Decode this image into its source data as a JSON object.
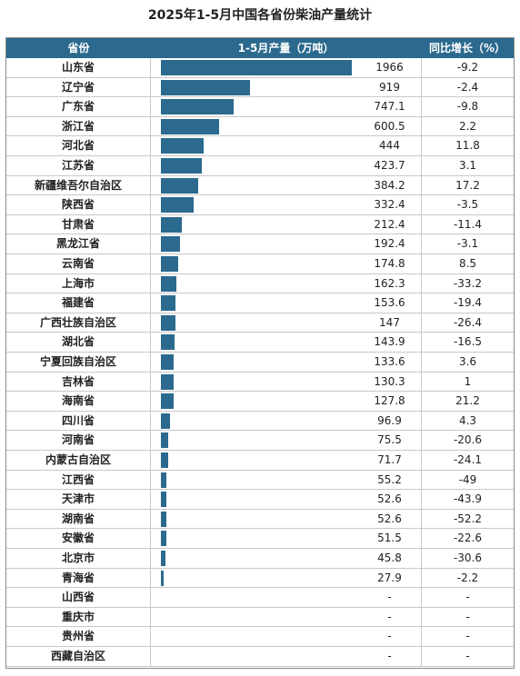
{
  "title": "2025年1-5月中国各省份柴油产量统计",
  "colors": {
    "header_bg": "#2b6a8e",
    "bar": "#2b6a8e"
  },
  "table": {
    "headers": {
      "province": "省份",
      "production": "1-5月产量（万吨）",
      "growth": "同比增长（%）"
    }
  },
  "chart_data": {
    "type": "table",
    "title": "2025年1-5月中国各省份柴油产量统计",
    "columns": [
      "省份",
      "1-5月产量（万吨）",
      "同比增长（%）"
    ],
    "bar_max": 1966,
    "rows": [
      {
        "province": "山东省",
        "value": 1966,
        "value_text": "1966",
        "growth": "-9.2"
      },
      {
        "province": "辽宁省",
        "value": 919,
        "value_text": "919",
        "growth": "-2.4"
      },
      {
        "province": "广东省",
        "value": 747.1,
        "value_text": "747.1",
        "growth": "-9.8"
      },
      {
        "province": "浙江省",
        "value": 600.5,
        "value_text": "600.5",
        "growth": "2.2"
      },
      {
        "province": "河北省",
        "value": 444,
        "value_text": "444",
        "growth": "11.8"
      },
      {
        "province": "江苏省",
        "value": 423.7,
        "value_text": "423.7",
        "growth": "3.1"
      },
      {
        "province": "新疆维吾尔自治区",
        "value": 384.2,
        "value_text": "384.2",
        "growth": "17.2"
      },
      {
        "province": "陕西省",
        "value": 332.4,
        "value_text": "332.4",
        "growth": "-3.5"
      },
      {
        "province": "甘肃省",
        "value": 212.4,
        "value_text": "212.4",
        "growth": "-11.4"
      },
      {
        "province": "黑龙江省",
        "value": 192.4,
        "value_text": "192.4",
        "growth": "-3.1"
      },
      {
        "province": "云南省",
        "value": 174.8,
        "value_text": "174.8",
        "growth": "8.5"
      },
      {
        "province": "上海市",
        "value": 162.3,
        "value_text": "162.3",
        "growth": "-33.2"
      },
      {
        "province": "福建省",
        "value": 153.6,
        "value_text": "153.6",
        "growth": "-19.4"
      },
      {
        "province": "广西壮族自治区",
        "value": 147,
        "value_text": "147",
        "growth": "-26.4"
      },
      {
        "province": "湖北省",
        "value": 143.9,
        "value_text": "143.9",
        "growth": "-16.5"
      },
      {
        "province": "宁夏回族自治区",
        "value": 133.6,
        "value_text": "133.6",
        "growth": "3.6"
      },
      {
        "province": "吉林省",
        "value": 130.3,
        "value_text": "130.3",
        "growth": "1"
      },
      {
        "province": "海南省",
        "value": 127.8,
        "value_text": "127.8",
        "growth": "21.2"
      },
      {
        "province": "四川省",
        "value": 96.9,
        "value_text": "96.9",
        "growth": "4.3"
      },
      {
        "province": "河南省",
        "value": 75.5,
        "value_text": "75.5",
        "growth": "-20.6"
      },
      {
        "province": "内蒙古自治区",
        "value": 71.7,
        "value_text": "71.7",
        "growth": "-24.1"
      },
      {
        "province": "江西省",
        "value": 55.2,
        "value_text": "55.2",
        "growth": "-49"
      },
      {
        "province": "天津市",
        "value": 52.6,
        "value_text": "52.6",
        "growth": "-43.9"
      },
      {
        "province": "湖南省",
        "value": 52.6,
        "value_text": "52.6",
        "growth": "-52.2"
      },
      {
        "province": "安徽省",
        "value": 51.5,
        "value_text": "51.5",
        "growth": "-22.6"
      },
      {
        "province": "北京市",
        "value": 45.8,
        "value_text": "45.8",
        "growth": "-30.6"
      },
      {
        "province": "青海省",
        "value": 27.9,
        "value_text": "27.9",
        "growth": "-2.2"
      },
      {
        "province": "山西省",
        "value": null,
        "value_text": "-",
        "growth": "-"
      },
      {
        "province": "重庆市",
        "value": null,
        "value_text": "-",
        "growth": "-"
      },
      {
        "province": "贵州省",
        "value": null,
        "value_text": "-",
        "growth": "-"
      },
      {
        "province": "西藏自治区",
        "value": null,
        "value_text": "-",
        "growth": "-"
      }
    ]
  }
}
